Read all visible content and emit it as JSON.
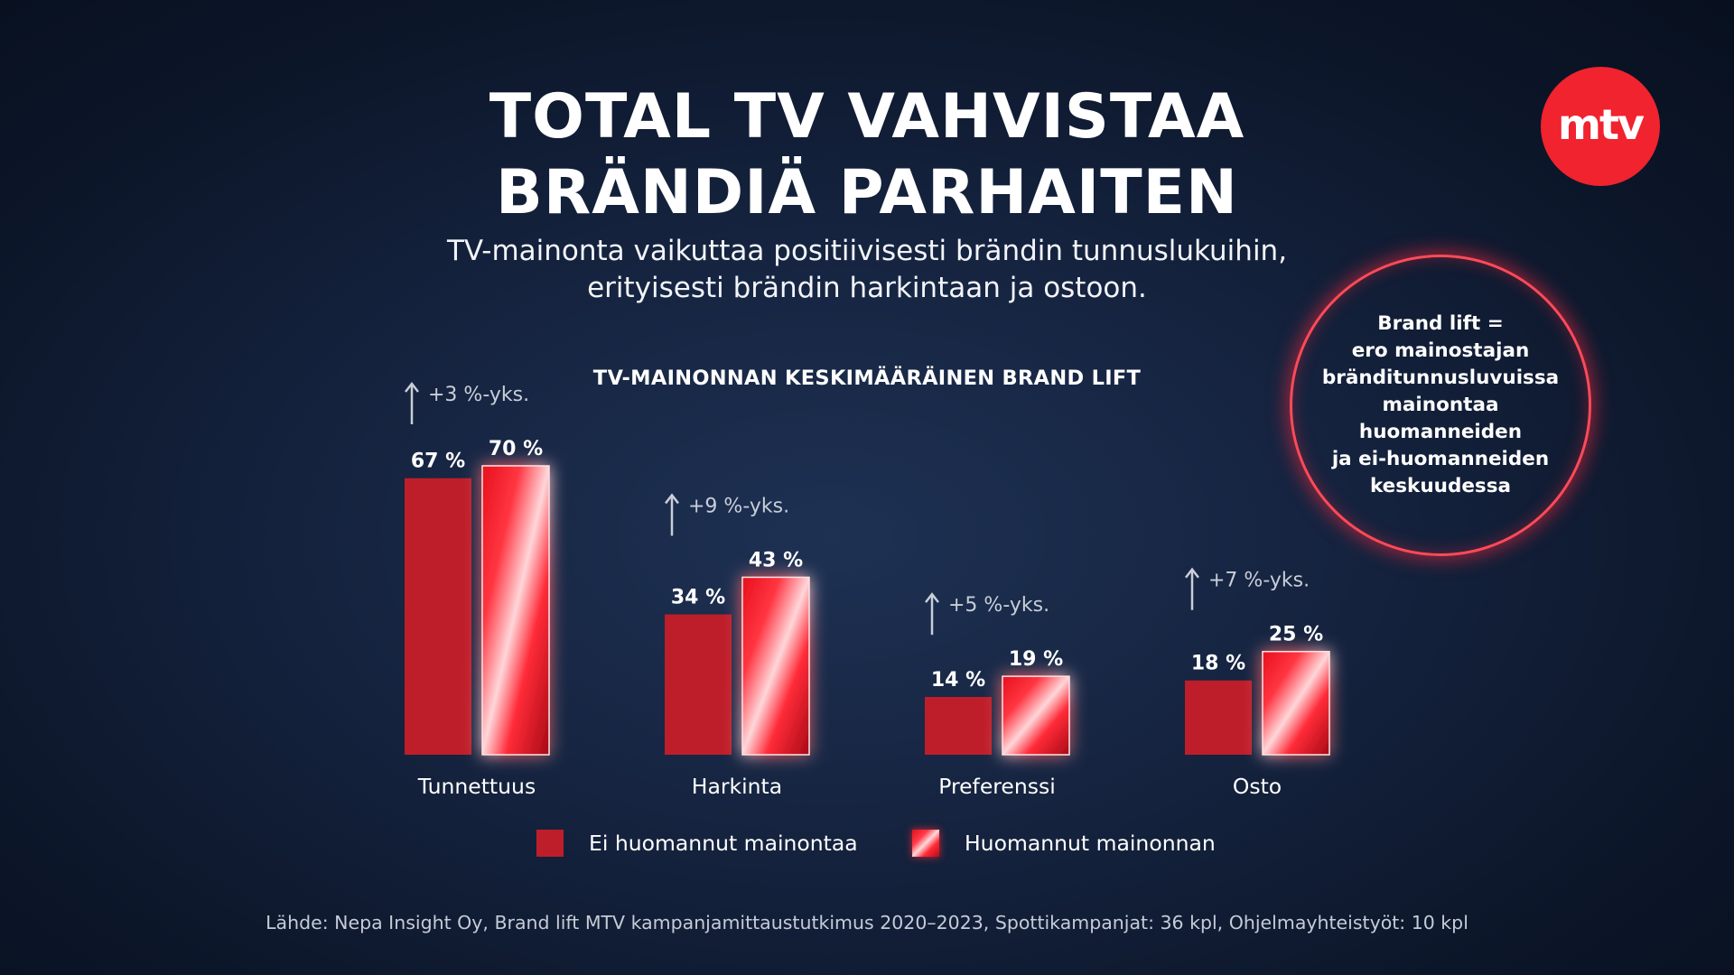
{
  "title": {
    "line1": "TOTAL TV VAHVISTAA",
    "line2": "BRÄNDIÄ PARHAITEN"
  },
  "subtitle": {
    "line1": "TV-mainonta vaikuttaa positiivisesti brändin tunnuslukuihin,",
    "line2": "erityisesti brändin harkintaan ja ostoon."
  },
  "logo": {
    "text": "mtv"
  },
  "info_circle": {
    "lines": [
      "Brand lift =",
      "ero mainostajan",
      "bränditunnusluvuissa",
      "mainontaa huomanneiden",
      "ja ei-huomanneiden",
      "keskuudessa"
    ]
  },
  "source": "Lähde: Nepa Insight Oy, Brand lift MTV kampanjamittaustutkimus 2020–2023, Spottikampanjat: 36 kpl, Ohjelmayhteistyöt: 10 kpl",
  "colors": {
    "background": "#101c33",
    "bar_not_noticed": "#be1e2a",
    "bar_noticed": "#f0232e",
    "axis": "#e8323c",
    "arrow_text": "#c9ced8",
    "logo": "#f0232e"
  },
  "chart_data": {
    "type": "bar",
    "title": "TV-MAINONNAN KESKIMÄÄRÄINEN BRAND LIFT",
    "categories": [
      "Tunnettuus",
      "Harkinta",
      "Preferenssi",
      "Osto"
    ],
    "series": [
      {
        "name": "Ei huomannut mainontaa",
        "values": [
          67,
          34,
          14,
          18
        ]
      },
      {
        "name": "Huomannut mainonnan",
        "values": [
          70,
          43,
          19,
          25
        ]
      }
    ],
    "value_labels": [
      [
        "67 %",
        "34 %",
        "14 %",
        "18 %"
      ],
      [
        "70 %",
        "43 %",
        "19 %",
        "25 %"
      ]
    ],
    "lift_labels": [
      "+3 %-yks.",
      "+9 %-yks.",
      "+5 %-yks.",
      "+7 %-yks."
    ],
    "ylim": [
      0,
      70
    ],
    "xlabel": "",
    "ylabel": "",
    "grid": false,
    "legend_position": "bottom"
  }
}
